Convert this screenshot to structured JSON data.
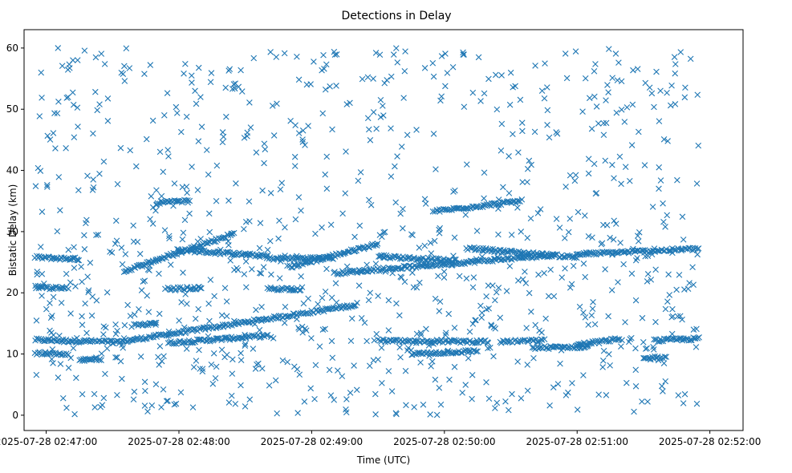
{
  "chart_data": {
    "type": "scatter",
    "title": "Detections in Delay",
    "xlabel": "Time (UTC)",
    "ylabel": "Bistatic Delay (km)",
    "x_type": "datetime",
    "xlim": [
      "2025-07-28 02:46:50",
      "2025-07-28 02:52:15"
    ],
    "ylim": [
      -2.5,
      63
    ],
    "x_ticks": [
      "2025-07-28 02:47:00",
      "2025-07-28 02:48:00",
      "2025-07-28 02:49:00",
      "2025-07-28 02:50:00",
      "2025-07-28 02:51:00",
      "2025-07-28 02:52:00"
    ],
    "y_ticks": [
      0,
      10,
      20,
      30,
      40,
      50,
      60
    ],
    "grid": false,
    "marker": "x",
    "color": "#1f77b4",
    "tracks": [
      {
        "from": [
          "2025-07-28 02:46:55",
          12.3
        ],
        "to": [
          "2025-07-28 02:47:30",
          12.0
        ]
      },
      {
        "from": [
          "2025-07-28 02:47:30",
          11.8
        ],
        "to": [
          "2025-07-28 02:49:20",
          18.0
        ]
      },
      {
        "from": [
          "2025-07-28 02:47:55",
          11.8
        ],
        "to": [
          "2025-07-28 02:48:40",
          13.0
        ]
      },
      {
        "from": [
          "2025-07-28 02:46:55",
          25.8
        ],
        "to": [
          "2025-07-28 02:47:15",
          25.5
        ]
      },
      {
        "from": [
          "2025-07-28 02:47:35",
          23.5
        ],
        "to": [
          "2025-07-28 02:48:25",
          29.7
        ]
      },
      {
        "from": [
          "2025-07-28 02:48:00",
          27.0
        ],
        "to": [
          "2025-07-28 02:48:40",
          26.0
        ]
      },
      {
        "from": [
          "2025-07-28 02:48:40",
          25.6
        ],
        "to": [
          "2025-07-28 02:49:10",
          25.7
        ]
      },
      {
        "from": [
          "2025-07-28 02:48:50",
          24.2
        ],
        "to": [
          "2025-07-28 02:49:30",
          28.0
        ]
      },
      {
        "from": [
          "2025-07-28 02:49:10",
          23.2
        ],
        "to": [
          "2025-07-28 02:50:50",
          26.2
        ]
      },
      {
        "from": [
          "2025-07-28 02:49:30",
          26.0
        ],
        "to": [
          "2025-07-28 02:50:05",
          25.2
        ]
      },
      {
        "from": [
          "2025-07-28 02:50:10",
          27.3
        ],
        "to": [
          "2025-07-28 02:51:00",
          25.8
        ]
      },
      {
        "from": [
          "2025-07-28 02:51:00",
          26.3
        ],
        "to": [
          "2025-07-28 02:51:55",
          27.2
        ]
      },
      {
        "from": [
          "2025-07-28 02:49:55",
          33.3
        ],
        "to": [
          "2025-07-28 02:50:35",
          35.0
        ]
      },
      {
        "from": [
          "2025-07-28 02:47:50",
          34.7
        ],
        "to": [
          "2025-07-28 02:48:05",
          35.0
        ]
      },
      {
        "from": [
          "2025-07-28 02:47:55",
          20.6
        ],
        "to": [
          "2025-07-28 02:48:10",
          20.8
        ]
      },
      {
        "from": [
          "2025-07-28 02:46:55",
          20.9
        ],
        "to": [
          "2025-07-28 02:47:10",
          20.7
        ]
      },
      {
        "from": [
          "2025-07-28 02:48:40",
          20.7
        ],
        "to": [
          "2025-07-28 02:48:55",
          20.6
        ]
      },
      {
        "from": [
          "2025-07-28 02:49:55",
          12.1
        ],
        "to": [
          "2025-07-28 02:50:20",
          12.0
        ]
      },
      {
        "from": [
          "2025-07-28 02:49:30",
          12.2
        ],
        "to": [
          "2025-07-28 02:49:55",
          11.9
        ]
      },
      {
        "from": [
          "2025-07-28 02:49:45",
          10.0
        ],
        "to": [
          "2025-07-28 02:50:15",
          10.5
        ]
      },
      {
        "from": [
          "2025-07-28 02:50:25",
          12.0
        ],
        "to": [
          "2025-07-28 02:50:45",
          12.2
        ]
      },
      {
        "from": [
          "2025-07-28 02:50:40",
          11.0
        ],
        "to": [
          "2025-07-28 02:51:05",
          11.2
        ]
      },
      {
        "from": [
          "2025-07-28 02:51:00",
          11.5
        ],
        "to": [
          "2025-07-28 02:51:20",
          12.5
        ]
      },
      {
        "from": [
          "2025-07-28 02:51:35",
          12.2
        ],
        "to": [
          "2025-07-28 02:51:55",
          12.5
        ]
      },
      {
        "from": [
          "2025-07-28 02:47:15",
          9.0
        ],
        "to": [
          "2025-07-28 02:47:25",
          9.2
        ]
      },
      {
        "from": [
          "2025-07-28 02:47:40",
          14.9
        ],
        "to": [
          "2025-07-28 02:47:50",
          15.0
        ]
      },
      {
        "from": [
          "2025-07-28 02:46:55",
          10.2
        ],
        "to": [
          "2025-07-28 02:47:10",
          9.8
        ]
      },
      {
        "from": [
          "2025-07-28 02:51:30",
          9.2
        ],
        "to": [
          "2025-07-28 02:51:40",
          9.6
        ]
      }
    ],
    "background_counts": [
      {
        "y_range": [
          0,
          10
        ],
        "count": 170
      },
      {
        "y_range": [
          10,
          30
        ],
        "count": 420
      },
      {
        "y_range": [
          30,
          45
        ],
        "count": 170
      },
      {
        "y_range": [
          45,
          60
        ],
        "count": 230
      }
    ]
  }
}
